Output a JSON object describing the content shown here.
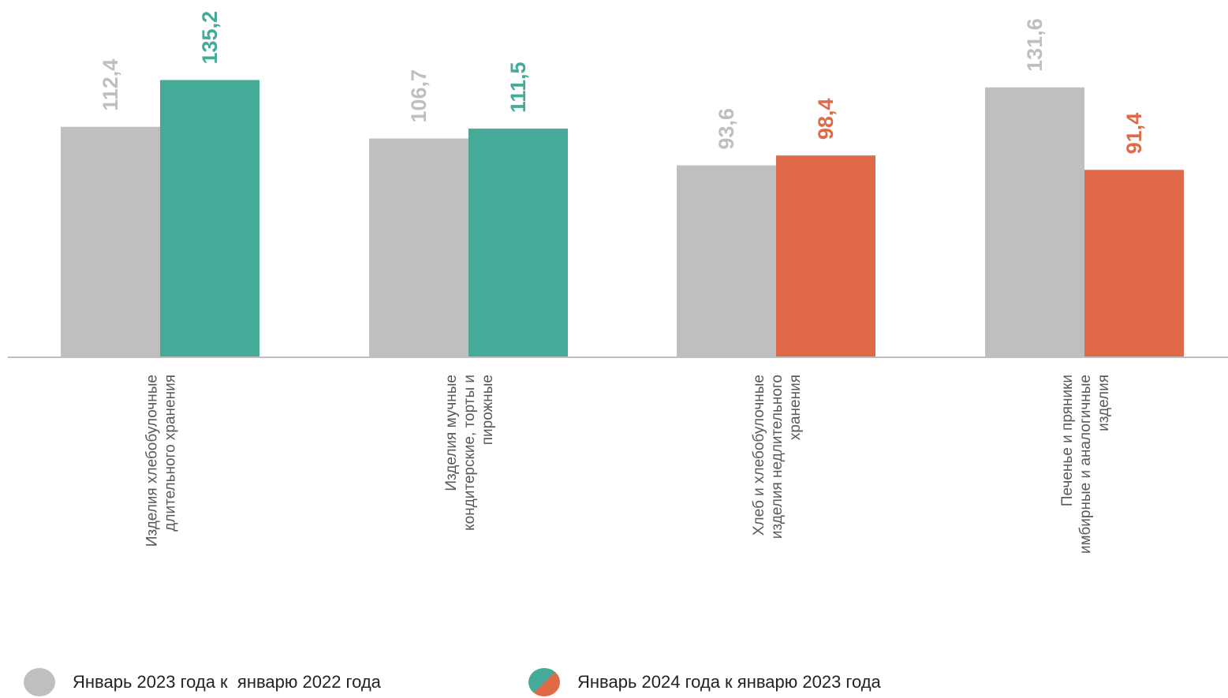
{
  "chart_data": {
    "type": "bar",
    "categories": [
      [
        "Изделия хлебобулочные",
        "длительного хранения"
      ],
      [
        "Изделия мучные",
        "кондитерские, торты и",
        "пирожные"
      ],
      [
        "Хлеб и хлебобулочные",
        "изделия недлительного",
        "хранения"
      ],
      [
        "Печенье и пряники",
        "имбирные и аналогичные",
        "изделия"
      ]
    ],
    "series": [
      {
        "name": "Январь 2023 года к  январю 2022 года",
        "values": [
          112.4,
          106.7,
          93.6,
          131.6
        ],
        "labels": [
          "112,4",
          "106,7",
          "93,6",
          "131,6"
        ]
      },
      {
        "name": "Январь 2024 года к январю 2023 года",
        "values": [
          135.2,
          111.5,
          98.4,
          91.4
        ],
        "labels": [
          "135,2",
          "111,5",
          "98,4",
          "91,4"
        ]
      }
    ],
    "ylim": [
      0,
      145
    ],
    "grid": false,
    "legend_position": "bottom",
    "colors": {
      "previous": "#BFBFBF",
      "increase": "#45AA98",
      "decrease": "#E06A48",
      "axis": "#BFBFBF",
      "category_text": "#595959"
    }
  }
}
